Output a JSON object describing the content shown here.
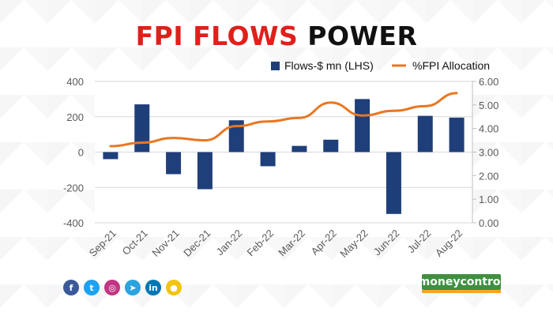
{
  "title_part1": "FPI FLOWS",
  "title_part2": "POWER",
  "brand": "moneycontrol",
  "socials": [
    {
      "name": "facebook-icon",
      "glyph": "f",
      "color": "#3b5998"
    },
    {
      "name": "twitter-icon",
      "glyph": "t",
      "color": "#1da1f2"
    },
    {
      "name": "instagram-icon",
      "glyph": "◎",
      "color": "#c13584"
    },
    {
      "name": "telegram-icon",
      "glyph": "➤",
      "color": "#2aa3df"
    },
    {
      "name": "linkedin-icon",
      "glyph": "in",
      "color": "#0077b5"
    },
    {
      "name": "koo-icon",
      "glyph": "●",
      "color": "#f1c40f"
    }
  ],
  "chart_data": {
    "type": "bar+line",
    "categories": [
      "Sep-21",
      "Oct-21",
      "Nov-21",
      "Dec-21",
      "Jan-22",
      "Feb-22",
      "Mar-22",
      "Apr-22",
      "May-22",
      "Jun-22",
      "Jul-22",
      "Aug-22"
    ],
    "series": [
      {
        "name": "Flows-$ mn (LHS)",
        "type": "bar",
        "axis": "left",
        "color": "#1f3f7a",
        "values": [
          -40,
          270,
          -125,
          -210,
          180,
          -80,
          35,
          70,
          300,
          -350,
          205,
          195
        ]
      },
      {
        "name": "%FPI Allocation",
        "type": "line",
        "axis": "right",
        "color": "#e87722",
        "values": [
          3.25,
          3.4,
          3.6,
          3.5,
          4.1,
          4.3,
          4.45,
          5.1,
          4.55,
          4.75,
          4.95,
          5.5
        ]
      }
    ],
    "left_axis": {
      "min": -400,
      "max": 400,
      "ticks": [
        "400",
        "200",
        "0",
        "-200",
        "-400"
      ]
    },
    "right_axis": {
      "min": 0,
      "max": 6,
      "ticks": [
        "6.00",
        "5.00",
        "4.00",
        "3.00",
        "2.00",
        "1.00",
        "0.00"
      ]
    },
    "legend_position": "top-right",
    "grid": true
  }
}
